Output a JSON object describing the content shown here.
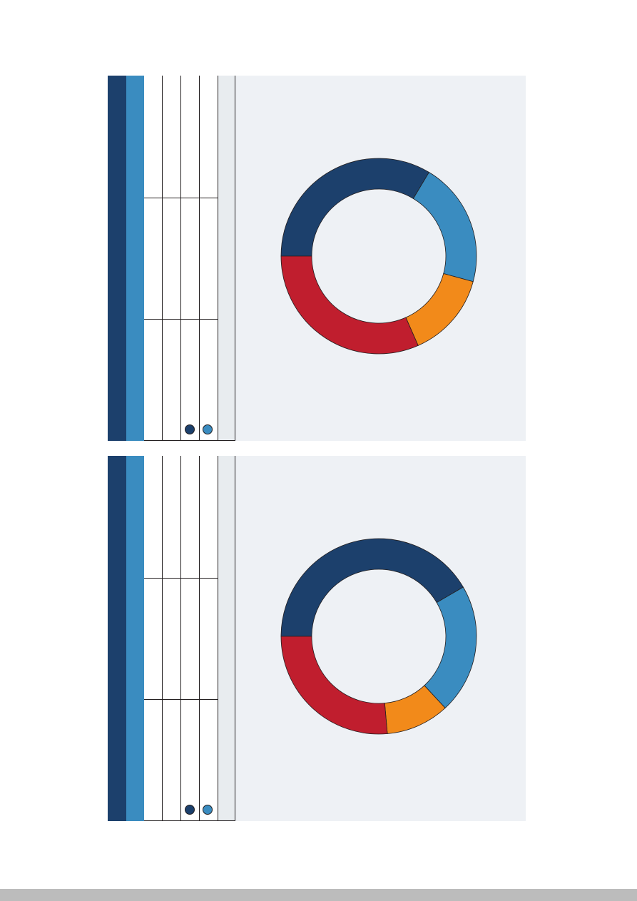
{
  "colors": {
    "dark_blue": "#1c406c",
    "light_blue": "#3a8cc0",
    "orange": "#f28a1a",
    "red": "#c01e2e",
    "panel_bg": "#eef1f5",
    "outline": "#231f20"
  },
  "chart_data": [
    {
      "type": "pie",
      "donut": true,
      "title": "",
      "slices": [
        {
          "color": "#1c406c",
          "value": 33.6
        },
        {
          "color": "#3a8cc0",
          "value": 20.6
        },
        {
          "color": "#f28a1a",
          "value": 14.2
        },
        {
          "color": "#c01e2e",
          "value": 31.6
        }
      ],
      "legend": {
        "entries": [
          "",
          "",
          "",
          ""
        ],
        "colors": [
          "#1c406c",
          "#3a8cc0",
          "#f28a1a",
          "#c01e2e"
        ]
      }
    },
    {
      "type": "pie",
      "donut": true,
      "title": "",
      "slices": [
        {
          "color": "#1c406c",
          "value": 41.6
        },
        {
          "color": "#3a8cc0",
          "value": 21.5
        },
        {
          "color": "#f28a1a",
          "value": 10.5
        },
        {
          "color": "#c01e2e",
          "value": 26.4
        }
      ],
      "legend": {
        "entries": [
          "",
          "",
          "",
          ""
        ],
        "colors": [
          "#1c406c",
          "#3a8cc0",
          "#f28a1a",
          "#c01e2e"
        ]
      }
    }
  ]
}
